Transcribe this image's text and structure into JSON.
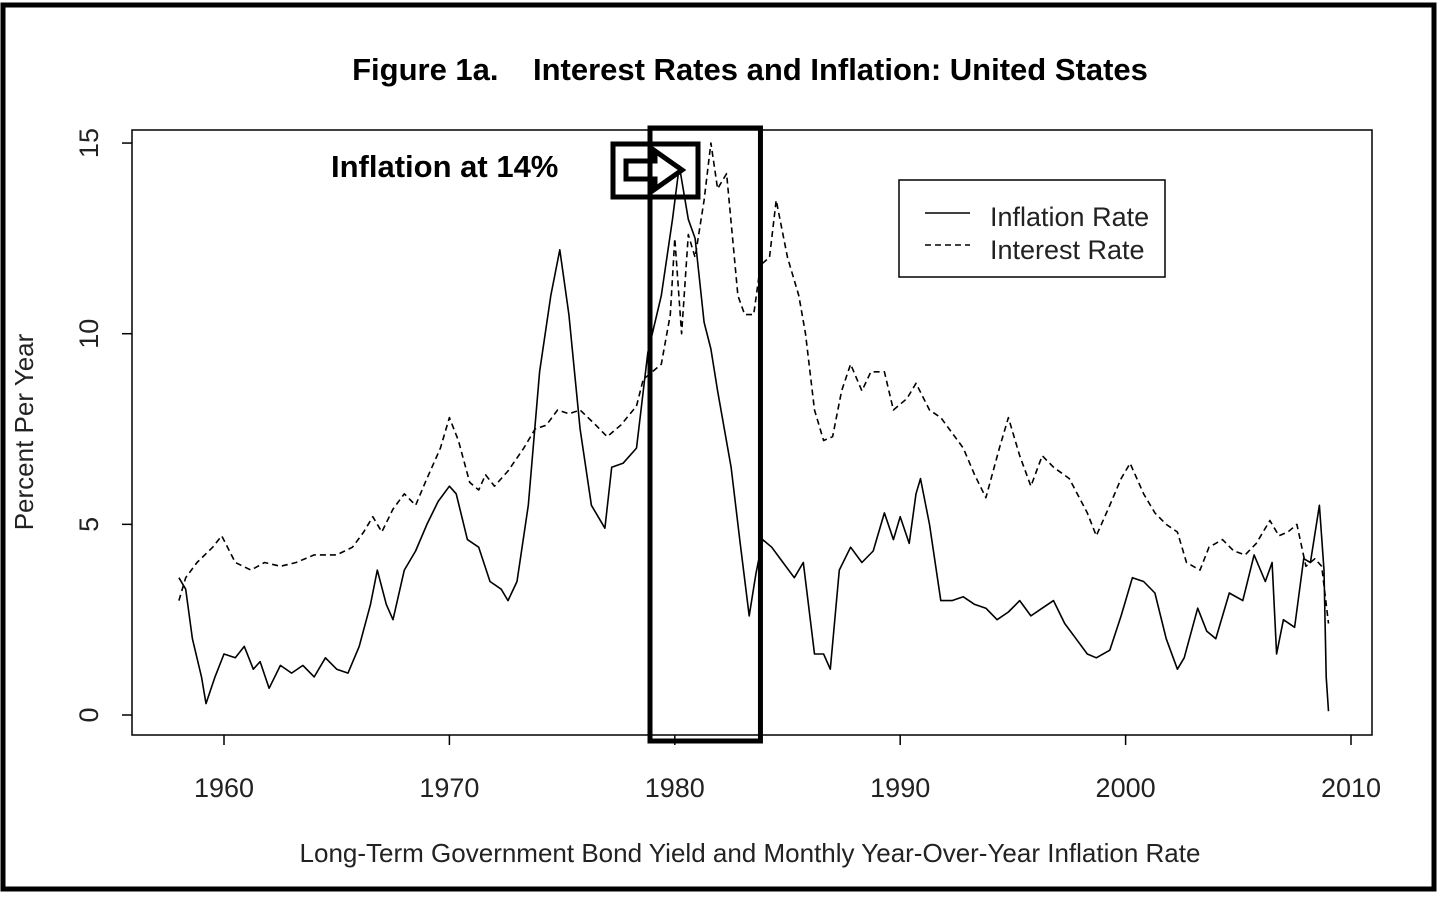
{
  "chart_data": {
    "type": "line",
    "title": "Figure 1a.    Interest Rates and Inflation: United States",
    "xlabel": "Long-Term Government Bond Yield and Monthly Year-Over-Year Inflation Rate",
    "ylabel": "Percent Per Year",
    "xlim": [
      1956,
      2011
    ],
    "ylim": [
      -0.5,
      15.3
    ],
    "x_ticks": [
      "1960",
      "1970",
      "1980",
      "1990",
      "2000",
      "2010"
    ],
    "y_ticks": [
      "0",
      "5",
      "10",
      "15"
    ],
    "grid": false,
    "legend_position": "top-right",
    "annotation": {
      "text": "Inflation at 14%",
      "highlight_years": [
        1978.9,
        1983.8
      ]
    },
    "series": [
      {
        "name": "Inflation Rate",
        "style": "solid",
        "points": [
          [
            1958.0,
            3.6
          ],
          [
            1958.3,
            3.3
          ],
          [
            1958.6,
            2.0
          ],
          [
            1959.0,
            1.0
          ],
          [
            1959.2,
            0.3
          ],
          [
            1959.6,
            1.0
          ],
          [
            1960.0,
            1.6
          ],
          [
            1960.5,
            1.5
          ],
          [
            1960.9,
            1.8
          ],
          [
            1961.3,
            1.2
          ],
          [
            1961.6,
            1.4
          ],
          [
            1962.0,
            0.7
          ],
          [
            1962.5,
            1.3
          ],
          [
            1963.0,
            1.1
          ],
          [
            1963.5,
            1.3
          ],
          [
            1964.0,
            1.0
          ],
          [
            1964.5,
            1.5
          ],
          [
            1965.0,
            1.2
          ],
          [
            1965.5,
            1.1
          ],
          [
            1966.0,
            1.8
          ],
          [
            1966.5,
            2.9
          ],
          [
            1966.8,
            3.8
          ],
          [
            1967.2,
            2.9
          ],
          [
            1967.5,
            2.5
          ],
          [
            1968.0,
            3.8
          ],
          [
            1968.5,
            4.3
          ],
          [
            1969.0,
            5.0
          ],
          [
            1969.5,
            5.6
          ],
          [
            1970.0,
            6.0
          ],
          [
            1970.3,
            5.8
          ],
          [
            1970.8,
            4.6
          ],
          [
            1971.3,
            4.4
          ],
          [
            1971.8,
            3.5
          ],
          [
            1972.3,
            3.3
          ],
          [
            1972.6,
            3.0
          ],
          [
            1973.0,
            3.5
          ],
          [
            1973.5,
            5.5
          ],
          [
            1974.0,
            9.0
          ],
          [
            1974.5,
            11.0
          ],
          [
            1974.9,
            12.2
          ],
          [
            1975.3,
            10.5
          ],
          [
            1975.8,
            7.5
          ],
          [
            1976.3,
            5.5
          ],
          [
            1976.9,
            4.9
          ],
          [
            1977.2,
            6.5
          ],
          [
            1977.7,
            6.6
          ],
          [
            1978.3,
            7.0
          ],
          [
            1978.8,
            9.5
          ],
          [
            1979.4,
            11.0
          ],
          [
            1979.9,
            13.0
          ],
          [
            1980.2,
            14.4
          ],
          [
            1980.6,
            13.0
          ],
          [
            1980.9,
            12.5
          ],
          [
            1981.3,
            10.3
          ],
          [
            1981.6,
            9.6
          ],
          [
            1981.9,
            8.5
          ],
          [
            1982.5,
            6.5
          ],
          [
            1982.9,
            4.5
          ],
          [
            1983.3,
            2.6
          ],
          [
            1983.6,
            3.7
          ],
          [
            1983.9,
            4.6
          ],
          [
            1984.3,
            4.4
          ],
          [
            1984.8,
            4.0
          ],
          [
            1985.3,
            3.6
          ],
          [
            1985.7,
            4.0
          ],
          [
            1986.2,
            1.6
          ],
          [
            1986.6,
            1.6
          ],
          [
            1986.9,
            1.2
          ],
          [
            1987.3,
            3.8
          ],
          [
            1987.8,
            4.4
          ],
          [
            1988.3,
            4.0
          ],
          [
            1988.8,
            4.3
          ],
          [
            1989.3,
            5.3
          ],
          [
            1989.7,
            4.6
          ],
          [
            1990.0,
            5.2
          ],
          [
            1990.4,
            4.5
          ],
          [
            1990.7,
            5.8
          ],
          [
            1990.9,
            6.2
          ],
          [
            1991.3,
            5.0
          ],
          [
            1991.8,
            3.0
          ],
          [
            1992.3,
            3.0
          ],
          [
            1992.8,
            3.1
          ],
          [
            1993.3,
            2.9
          ],
          [
            1993.8,
            2.8
          ],
          [
            1994.3,
            2.5
          ],
          [
            1994.8,
            2.7
          ],
          [
            1995.3,
            3.0
          ],
          [
            1995.8,
            2.6
          ],
          [
            1996.3,
            2.8
          ],
          [
            1996.8,
            3.0
          ],
          [
            1997.3,
            2.4
          ],
          [
            1997.8,
            2.0
          ],
          [
            1998.3,
            1.6
          ],
          [
            1998.7,
            1.5
          ],
          [
            1999.3,
            1.7
          ],
          [
            1999.8,
            2.6
          ],
          [
            2000.3,
            3.6
          ],
          [
            2000.8,
            3.5
          ],
          [
            2001.3,
            3.2
          ],
          [
            2001.8,
            2.0
          ],
          [
            2002.3,
            1.2
          ],
          [
            2002.6,
            1.5
          ],
          [
            2003.2,
            2.8
          ],
          [
            2003.6,
            2.2
          ],
          [
            2004.0,
            2.0
          ],
          [
            2004.6,
            3.2
          ],
          [
            2005.2,
            3.0
          ],
          [
            2005.7,
            4.2
          ],
          [
            2006.2,
            3.5
          ],
          [
            2006.5,
            4.0
          ],
          [
            2006.7,
            1.6
          ],
          [
            2007.0,
            2.5
          ],
          [
            2007.5,
            2.3
          ],
          [
            2007.9,
            4.1
          ],
          [
            2008.2,
            4.0
          ],
          [
            2008.6,
            5.5
          ],
          [
            2008.8,
            3.8
          ],
          [
            2008.9,
            1.0
          ],
          [
            2009.0,
            0.1
          ]
        ]
      },
      {
        "name": "Interest Rate",
        "style": "dashed",
        "points": [
          [
            1958.0,
            3.0
          ],
          [
            1958.3,
            3.6
          ],
          [
            1958.8,
            4.0
          ],
          [
            1959.5,
            4.4
          ],
          [
            1959.9,
            4.7
          ],
          [
            1960.5,
            4.0
          ],
          [
            1961.2,
            3.8
          ],
          [
            1961.8,
            4.0
          ],
          [
            1962.5,
            3.9
          ],
          [
            1963.2,
            4.0
          ],
          [
            1964.0,
            4.2
          ],
          [
            1965.0,
            4.2
          ],
          [
            1965.7,
            4.4
          ],
          [
            1966.2,
            4.8
          ],
          [
            1966.6,
            5.2
          ],
          [
            1967.0,
            4.8
          ],
          [
            1967.5,
            5.4
          ],
          [
            1968.0,
            5.8
          ],
          [
            1968.5,
            5.5
          ],
          [
            1969.0,
            6.2
          ],
          [
            1969.6,
            7.0
          ],
          [
            1970.0,
            7.8
          ],
          [
            1970.4,
            7.2
          ],
          [
            1970.9,
            6.1
          ],
          [
            1971.3,
            5.9
          ],
          [
            1971.6,
            6.3
          ],
          [
            1972.0,
            6.0
          ],
          [
            1972.6,
            6.4
          ],
          [
            1973.3,
            7.0
          ],
          [
            1973.8,
            7.5
          ],
          [
            1974.3,
            7.6
          ],
          [
            1974.8,
            8.0
          ],
          [
            1975.3,
            7.9
          ],
          [
            1975.8,
            8.0
          ],
          [
            1976.5,
            7.6
          ],
          [
            1977.0,
            7.3
          ],
          [
            1977.6,
            7.6
          ],
          [
            1978.3,
            8.1
          ],
          [
            1978.6,
            8.8
          ],
          [
            1979.0,
            9.0
          ],
          [
            1979.4,
            9.2
          ],
          [
            1979.8,
            10.5
          ],
          [
            1980.0,
            12.5
          ],
          [
            1980.3,
            10.0
          ],
          [
            1980.6,
            12.6
          ],
          [
            1980.9,
            12.0
          ],
          [
            1981.3,
            13.5
          ],
          [
            1981.6,
            15.0
          ],
          [
            1981.9,
            13.8
          ],
          [
            1982.3,
            14.2
          ],
          [
            1982.8,
            11.0
          ],
          [
            1983.1,
            10.5
          ],
          [
            1983.5,
            10.5
          ],
          [
            1983.8,
            11.8
          ],
          [
            1984.2,
            12.0
          ],
          [
            1984.5,
            13.5
          ],
          [
            1985.0,
            12.0
          ],
          [
            1985.5,
            11.0
          ],
          [
            1985.8,
            10.0
          ],
          [
            1986.2,
            8.0
          ],
          [
            1986.6,
            7.2
          ],
          [
            1987.0,
            7.3
          ],
          [
            1987.4,
            8.5
          ],
          [
            1987.8,
            9.2
          ],
          [
            1988.3,
            8.5
          ],
          [
            1988.7,
            9.0
          ],
          [
            1989.3,
            9.0
          ],
          [
            1989.7,
            8.0
          ],
          [
            1990.3,
            8.3
          ],
          [
            1990.7,
            8.7
          ],
          [
            1991.3,
            8.0
          ],
          [
            1991.8,
            7.8
          ],
          [
            1992.3,
            7.4
          ],
          [
            1992.8,
            7.0
          ],
          [
            1993.3,
            6.3
          ],
          [
            1993.8,
            5.7
          ],
          [
            1994.4,
            7.0
          ],
          [
            1994.8,
            7.8
          ],
          [
            1995.3,
            6.8
          ],
          [
            1995.8,
            6.0
          ],
          [
            1996.3,
            6.8
          ],
          [
            1996.8,
            6.5
          ],
          [
            1997.5,
            6.2
          ],
          [
            1998.3,
            5.3
          ],
          [
            1998.7,
            4.7
          ],
          [
            1999.3,
            5.5
          ],
          [
            1999.8,
            6.2
          ],
          [
            2000.2,
            6.6
          ],
          [
            2000.8,
            5.8
          ],
          [
            2001.3,
            5.3
          ],
          [
            2001.8,
            5.0
          ],
          [
            2002.3,
            4.8
          ],
          [
            2002.7,
            4.0
          ],
          [
            2003.3,
            3.8
          ],
          [
            2003.7,
            4.4
          ],
          [
            2004.3,
            4.6
          ],
          [
            2004.8,
            4.3
          ],
          [
            2005.3,
            4.2
          ],
          [
            2005.8,
            4.5
          ],
          [
            2006.4,
            5.1
          ],
          [
            2006.8,
            4.7
          ],
          [
            2007.2,
            4.8
          ],
          [
            2007.6,
            5.0
          ],
          [
            2008.0,
            3.9
          ],
          [
            2008.4,
            4.1
          ],
          [
            2008.7,
            3.9
          ],
          [
            2009.0,
            2.4
          ]
        ]
      }
    ]
  }
}
